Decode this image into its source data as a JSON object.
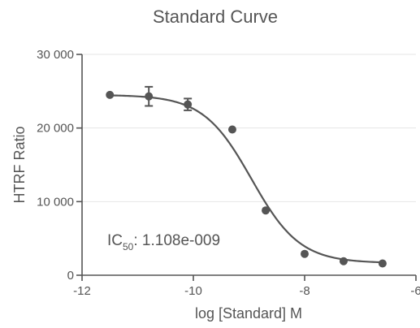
{
  "chart_data": {
    "type": "scatter",
    "title": "Standard Curve",
    "xlabel": "log [Standard] M",
    "ylabel": "HTRF Ratio",
    "xlim": [
      -12,
      -6
    ],
    "ylim": [
      0,
      30000
    ],
    "x_ticks": [
      -12,
      -10,
      -8,
      -6
    ],
    "y_ticks": [
      0,
      10000,
      20000,
      30000
    ],
    "x_tick_labels": [
      "-12",
      "-10",
      "-8",
      "-6"
    ],
    "y_tick_labels": [
      "0",
      "10 000",
      "20 000",
      "30 000"
    ],
    "grid": "horizontal",
    "series": [
      {
        "x": [
          -11.5,
          -10.8,
          -10.1,
          -9.3,
          -8.7,
          -8.0,
          -7.3,
          -6.6
        ],
        "y": [
          24500,
          24300,
          23200,
          19800,
          8800,
          2900,
          1900,
          1600
        ],
        "err": [
          0,
          1300,
          800,
          0,
          0,
          0,
          0,
          0
        ]
      }
    ],
    "fit": {
      "type": "4PL",
      "top": 24500,
      "bottom": 1650,
      "log_ic50": -8.955,
      "hill_slope": -1.0
    },
    "annotation": {
      "prefix": "IC",
      "subscript": "50",
      "text": ": 1.108e-009"
    }
  }
}
